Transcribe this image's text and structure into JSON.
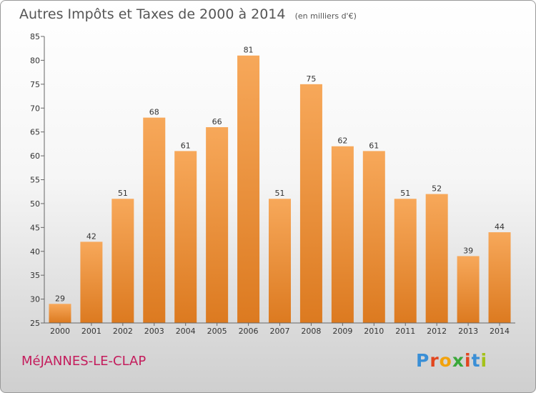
{
  "chart_data": {
    "type": "bar",
    "title": "Autres Impôts et Taxes de 2000 à 2014",
    "unit": "(en milliers d'€)",
    "categories": [
      "2000",
      "2001",
      "2002",
      "2003",
      "2004",
      "2005",
      "2006",
      "2007",
      "2008",
      "2009",
      "2010",
      "2011",
      "2012",
      "2013",
      "2014"
    ],
    "values": [
      29,
      42,
      51,
      68,
      61,
      66,
      81,
      51,
      75,
      62,
      61,
      51,
      52,
      39,
      44
    ],
    "ylim": [
      25,
      85
    ],
    "yticks": [
      25,
      30,
      35,
      40,
      45,
      50,
      55,
      60,
      65,
      70,
      75,
      80,
      85
    ],
    "grid": false,
    "bar_color": "#f0902f"
  },
  "footer": {
    "commune": "MéJANNES-LE-CLAP",
    "logo_letters": [
      "P",
      "r",
      "o",
      "x",
      "i",
      "t",
      "i"
    ],
    "logo_colors": [
      "#3a8fd6",
      "#e2461f",
      "#f2a20c",
      "#3aa83a",
      "#e2461f",
      "#3a8fd6",
      "#a4c21a"
    ]
  }
}
